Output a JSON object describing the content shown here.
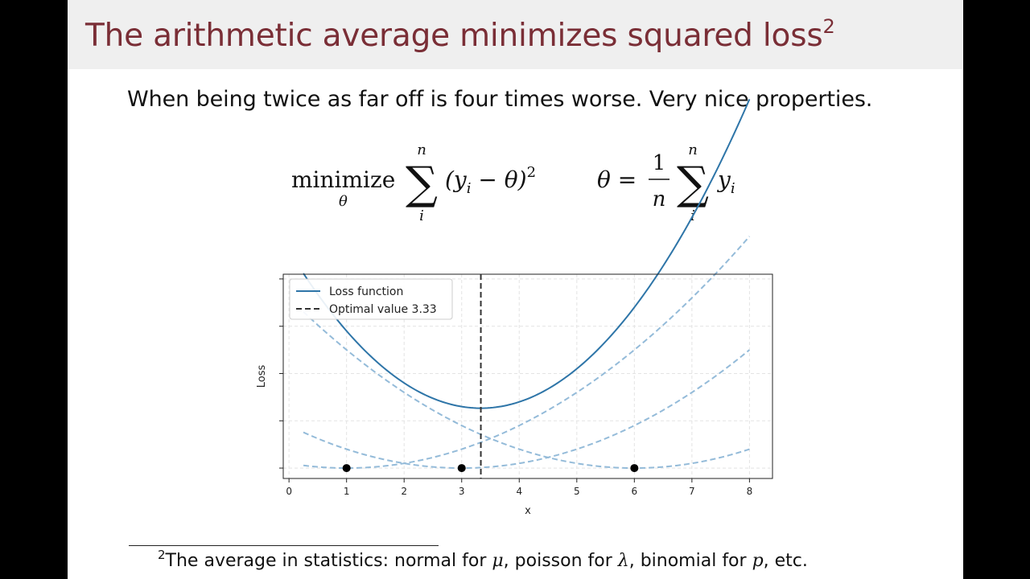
{
  "slide": {
    "title": "The arithmetic average minimizes squared loss",
    "title_footnote_mark": "2",
    "subtitle": "When being twice as far off is four times worse. Very nice properties.",
    "footnote": {
      "mark": "2",
      "parts": [
        "The average in statistics: normal for ",
        "μ",
        ", poisson for ",
        "λ",
        ", binomial for ",
        "p",
        ", etc."
      ]
    }
  },
  "formula": {
    "minimize_word": "minimize",
    "minimize_sub": "θ",
    "sum1": {
      "symbol": "∑",
      "upper": "n",
      "lower": "i",
      "body_open": "(y",
      "body_sub": "i",
      "body_rest": " − θ)",
      "body_sup": "2"
    },
    "lhs": "θ =",
    "frac_num": "1",
    "frac_den": "n",
    "sum2": {
      "symbol": "∑",
      "upper": "n",
      "lower": "i",
      "body": "y",
      "body_sub": "i"
    }
  },
  "chart_data": {
    "type": "line",
    "xlabel": "x",
    "ylabel": "Loss",
    "xlim": [
      -0.1,
      8.4
    ],
    "ylim": [
      -2.2,
      41
    ],
    "x_ticks": [
      0,
      1,
      2,
      3,
      4,
      5,
      6,
      7,
      8
    ],
    "y_ticks": [
      0,
      10,
      20,
      30,
      40
    ],
    "y_tick_labels_visible": false,
    "grid": true,
    "legend_position": "top-left",
    "x_range": [
      0.25,
      8
    ],
    "data_points": [
      1,
      3,
      6
    ],
    "optimal_value": 3.333,
    "series": [
      {
        "name": "Loss function",
        "kind": "total",
        "formula": "sum((x - y_i)^2)",
        "color": "#2e75a8"
      },
      {
        "kind": "component",
        "point": 1,
        "formula": "(x - 1)^2",
        "color": "#94bbd9"
      },
      {
        "kind": "component",
        "point": 3,
        "formula": "(x - 3)^2",
        "color": "#94bbd9"
      },
      {
        "kind": "component",
        "point": 6,
        "formula": "(x - 6)^2",
        "color": "#94bbd9"
      }
    ],
    "vline": {
      "name": "Optimal value 3.33",
      "x": 3.333,
      "color": "#333333"
    }
  }
}
